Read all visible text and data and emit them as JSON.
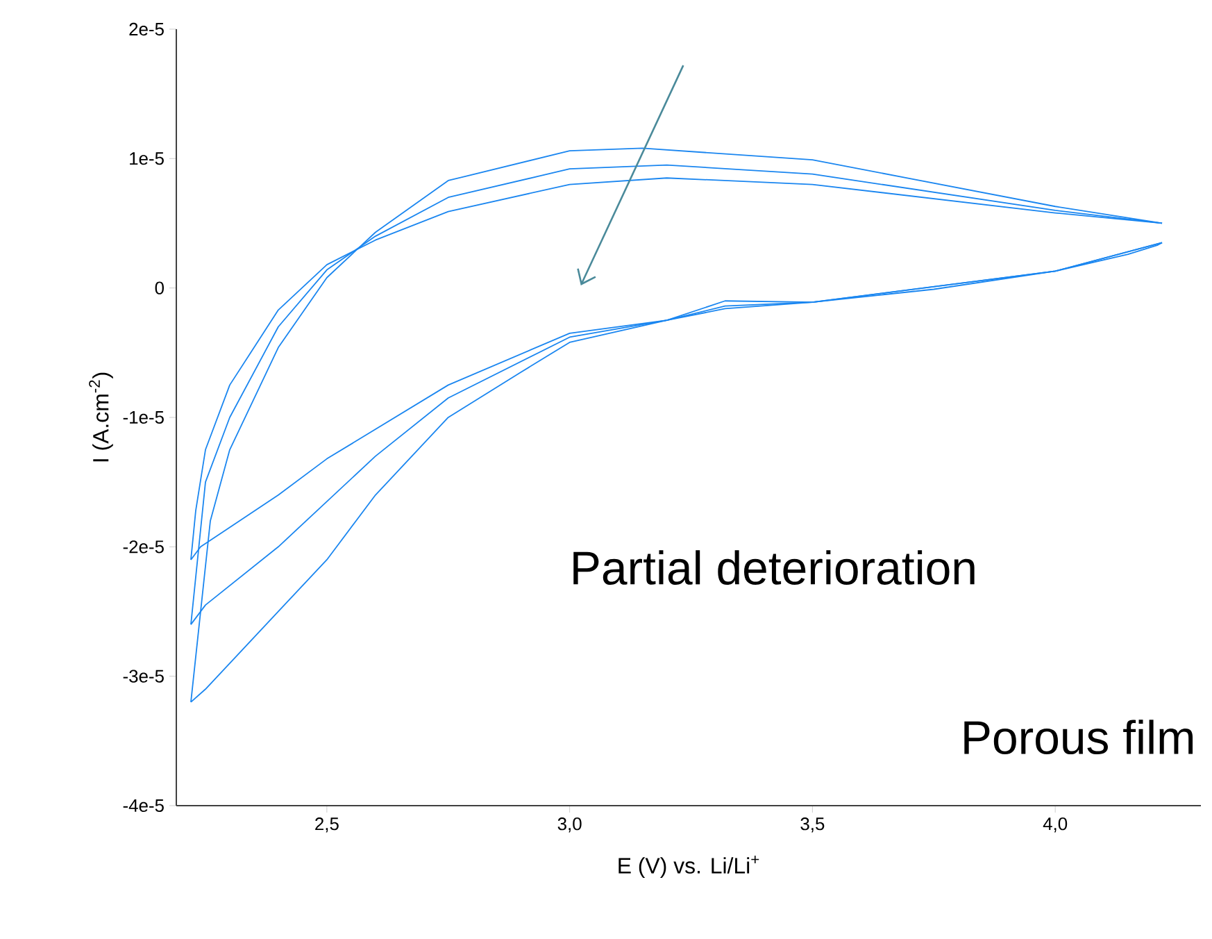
{
  "chart_data": {
    "type": "line",
    "xlabel": "E (V) vs. Li/Li$^{+}$",
    "ylabel": "I (A.cm$^{-2}$)",
    "annotations": [
      "Partial deterioration",
      "Porous film"
    ],
    "xlim": [
      2.19,
      4.3
    ],
    "ylim": [
      -4e-05,
      2e-05
    ],
    "xticks": [
      {
        "value": 2.5,
        "label": "2,5"
      },
      {
        "value": 3.0,
        "label": "3,0"
      },
      {
        "value": 3.5,
        "label": "3,5"
      },
      {
        "value": 4.0,
        "label": "4,0"
      }
    ],
    "yticks": [
      {
        "value": -4e-05,
        "label": "-4e-5"
      },
      {
        "value": -3e-05,
        "label": "-3e-5"
      },
      {
        "value": -2e-05,
        "label": "-2e-5"
      },
      {
        "value": -1e-05,
        "label": "-1e-5"
      },
      0,
      {
        "value": 1e-05,
        "label": "1e-5"
      },
      {
        "value": 2e-05,
        "label": "2e-5"
      }
    ],
    "series": [
      {
        "color": "#1a86f0",
        "x": [
          2.22,
          2.25,
          2.4,
          2.5,
          2.6,
          2.75,
          2.9,
          3.0,
          3.2,
          3.32,
          3.5,
          3.75,
          4.0,
          4.15,
          4.21,
          4.22
        ],
        "values": [
          -3.2e-05,
          -3.1e-05,
          -2.5e-05,
          -2.1e-05,
          -1.6e-05,
          -1e-05,
          -6.5e-06,
          -4.2e-06,
          -2.5e-06,
          -1e-06,
          -1.1e-06,
          -1e-07,
          1.3e-06,
          2.6e-06,
          3.3e-06,
          3.5e-06
        ]
      },
      {
        "color": "#1a86f0",
        "x": [
          2.22,
          2.26,
          2.3,
          2.4,
          2.5,
          2.6,
          2.75,
          3.0,
          3.15,
          3.5,
          4.0,
          4.22
        ],
        "values": [
          -3.2e-05,
          -1.8e-05,
          -1.25e-05,
          -4.6e-06,
          8e-07,
          4.3e-06,
          8.3e-06,
          1.06e-05,
          1.08e-05,
          9.9e-06,
          6.3e-06,
          5e-06
        ]
      },
      {
        "color": "#1a86f0",
        "x": [
          2.22,
          2.25,
          2.4,
          2.5,
          2.6,
          2.75,
          3.0,
          3.2,
          3.32,
          3.5,
          4.0,
          4.22
        ],
        "values": [
          -2.6e-05,
          -2.45e-05,
          -2e-05,
          -1.65e-05,
          -1.3e-05,
          -8.5e-06,
          -3.8e-06,
          -2.5e-06,
          -1.4e-06,
          -1.1e-06,
          1.3e-06,
          3.5e-06
        ]
      },
      {
        "color": "#1a86f0",
        "x": [
          2.22,
          2.25,
          2.3,
          2.4,
          2.5,
          2.6,
          2.75,
          3.0,
          3.2,
          3.5,
          4.0,
          4.22
        ],
        "values": [
          -2.6e-05,
          -1.5e-05,
          -1e-05,
          -3e-06,
          1.4e-06,
          4e-06,
          7e-06,
          9.2e-06,
          9.5e-06,
          8.8e-06,
          6e-06,
          5e-06
        ]
      },
      {
        "color": "#1a86f0",
        "x": [
          2.22,
          2.24,
          2.4,
          2.5,
          2.75,
          3.0,
          3.2,
          3.32,
          3.5,
          4.0,
          4.22
        ],
        "values": [
          -2.1e-05,
          -2e-05,
          -1.6e-05,
          -1.32e-05,
          -7.5e-06,
          -3.5e-06,
          -2.5e-06,
          -1.6e-06,
          -1.1e-06,
          1.3e-06,
          3.5e-06
        ]
      },
      {
        "color": "#1a86f0",
        "x": [
          2.22,
          2.23,
          2.25,
          2.3,
          2.4,
          2.5,
          2.6,
          2.75,
          3.0,
          3.2,
          3.5,
          4.0,
          4.22
        ],
        "values": [
          -2.1e-05,
          -1.72e-05,
          -1.25e-05,
          -7.5e-06,
          -1.7e-06,
          1.8e-06,
          3.7e-06,
          5.9e-06,
          8e-06,
          8.5e-06,
          8e-06,
          5.8e-06,
          5e-06
        ]
      }
    ]
  }
}
